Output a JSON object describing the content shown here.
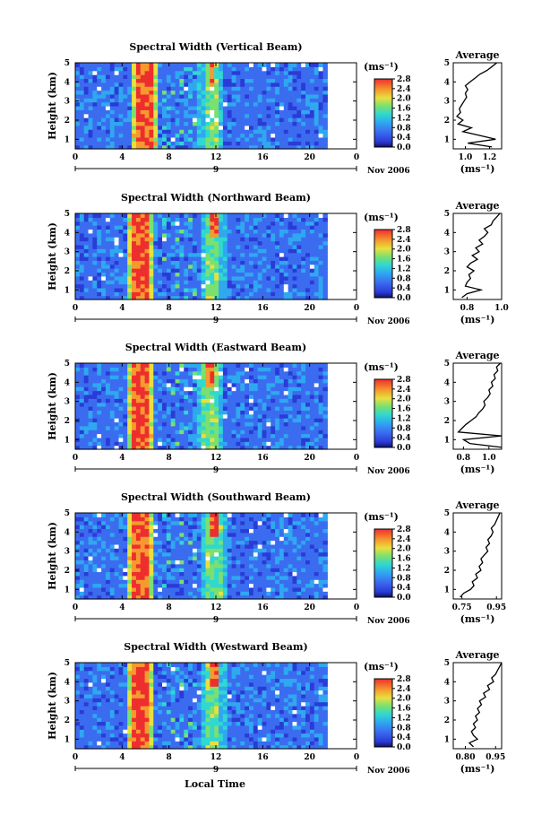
{
  "figure": {
    "xlabel": "Local Time",
    "date_label": "Nov 2006",
    "day_label": "9",
    "colorbar_unit": "(ms⁻¹)",
    "avg_title": "Average",
    "avg_xlabel": "(ms⁻¹)"
  },
  "chart_data": [
    {
      "type": "heatmap",
      "title": "Spectral Width (Vertical Beam)",
      "ylabel": "Height (km)",
      "x_ticks": [
        "0",
        "4",
        "8",
        "12",
        "16",
        "20",
        "0"
      ],
      "y_ticks": [
        "1",
        "2",
        "3",
        "4",
        "5"
      ],
      "xlim": [
        0,
        24
      ],
      "ylim": [
        0.5,
        5
      ],
      "colorbar_ticks": [
        "0.0",
        "0.4",
        "0.8",
        "1.2",
        "1.6",
        "2.0",
        "2.4",
        "2.8"
      ],
      "colorbar_range": [
        0.0,
        2.8
      ],
      "high_width_times": [
        5.8,
        11.6
      ],
      "average_profile": {
        "title": "Average",
        "xlabel": "(ms⁻¹)",
        "x_ticks": [
          "1.0",
          "1.2"
        ],
        "xlim": [
          0.9,
          1.3
        ],
        "ylim": [
          0.5,
          5
        ],
        "y_ticks": [
          "1",
          "2",
          "3",
          "4",
          "5"
        ],
        "height": [
          0.6,
          0.8,
          1.0,
          1.2,
          1.4,
          1.6,
          1.8,
          2.0,
          2.2,
          2.4,
          2.6,
          2.8,
          3.0,
          3.2,
          3.4,
          3.6,
          3.8,
          4.0,
          4.2,
          4.4,
          4.6,
          4.8,
          5.0
        ],
        "value": [
          1.22,
          1.02,
          1.25,
          1.12,
          0.98,
          1.05,
          0.94,
          0.98,
          0.93,
          0.96,
          0.95,
          0.97,
          0.99,
          1.01,
          1.0,
          1.02,
          1.0,
          1.04,
          1.08,
          1.12,
          1.18,
          1.22,
          1.26
        ]
      }
    },
    {
      "type": "heatmap",
      "title": "Spectral Width (Northward Beam)",
      "ylabel": "Height (km)",
      "x_ticks": [
        "0",
        "4",
        "8",
        "12",
        "16",
        "20",
        "0"
      ],
      "y_ticks": [
        "1",
        "2",
        "3",
        "4",
        "5"
      ],
      "xlim": [
        0,
        24
      ],
      "ylim": [
        0.5,
        5
      ],
      "colorbar_ticks": [
        "0.0",
        "0.4",
        "0.8",
        "1.2",
        "1.6",
        "2.0",
        "2.4",
        "2.8"
      ],
      "colorbar_range": [
        0.0,
        2.8
      ],
      "high_width_times": [
        5.5,
        11.8
      ],
      "average_profile": {
        "title": "Average",
        "xlabel": "(ms⁻¹)",
        "x_ticks": [
          "0.8",
          "1.0"
        ],
        "xlim": [
          0.72,
          1.0
        ],
        "ylim": [
          0.5,
          5
        ],
        "y_ticks": [
          "1",
          "2",
          "3",
          "4",
          "5"
        ],
        "height": [
          0.6,
          0.8,
          1.0,
          1.2,
          1.4,
          1.6,
          1.8,
          2.0,
          2.2,
          2.4,
          2.6,
          2.8,
          3.0,
          3.2,
          3.4,
          3.6,
          3.8,
          4.0,
          4.2,
          4.4,
          4.6,
          4.8,
          5.0
        ],
        "value": [
          0.77,
          0.8,
          0.88,
          0.79,
          0.8,
          0.82,
          0.81,
          0.84,
          0.8,
          0.82,
          0.86,
          0.83,
          0.87,
          0.85,
          0.89,
          0.87,
          0.9,
          0.92,
          0.9,
          0.94,
          0.95,
          0.97,
          0.99
        ]
      }
    },
    {
      "type": "heatmap",
      "title": "Spectral Width (Eastward Beam)",
      "ylabel": "Height (km)",
      "x_ticks": [
        "0",
        "4",
        "8",
        "12",
        "16",
        "20",
        "0"
      ],
      "y_ticks": [
        "1",
        "2",
        "3",
        "4",
        "5"
      ],
      "xlim": [
        0,
        24
      ],
      "ylim": [
        0.5,
        5
      ],
      "colorbar_ticks": [
        "0.0",
        "0.4",
        "0.8",
        "1.2",
        "1.6",
        "2.0",
        "2.4",
        "2.8"
      ],
      "colorbar_range": [
        0.0,
        2.8
      ],
      "high_width_times": [
        5.7,
        11.5
      ],
      "average_profile": {
        "title": "Average",
        "xlabel": "(ms⁻¹)",
        "x_ticks": [
          "0.8",
          "1.0"
        ],
        "xlim": [
          0.72,
          1.1
        ],
        "ylim": [
          0.5,
          5
        ],
        "y_ticks": [
          "1",
          "2",
          "3",
          "4",
          "5"
        ],
        "height": [
          0.6,
          0.8,
          1.0,
          1.2,
          1.4,
          1.6,
          1.8,
          2.0,
          2.2,
          2.4,
          2.6,
          2.8,
          3.0,
          3.2,
          3.4,
          3.6,
          3.8,
          4.0,
          4.2,
          4.4,
          4.6,
          4.8,
          5.0
        ],
        "value": [
          1.1,
          0.85,
          0.8,
          1.1,
          0.76,
          0.79,
          0.82,
          0.86,
          0.9,
          0.92,
          0.95,
          0.97,
          0.96,
          0.99,
          1.01,
          1.0,
          1.03,
          1.02,
          1.05,
          1.04,
          1.07,
          1.06,
          1.09
        ]
      }
    },
    {
      "type": "heatmap",
      "title": "Spectral Width (Southward Beam)",
      "ylabel": "Height (km)",
      "x_ticks": [
        "0",
        "4",
        "8",
        "12",
        "16",
        "20",
        "0"
      ],
      "y_ticks": [
        "1",
        "2",
        "3",
        "4",
        "5"
      ],
      "xlim": [
        0,
        24
      ],
      "ylim": [
        0.5,
        5
      ],
      "colorbar_ticks": [
        "0.0",
        "0.4",
        "0.8",
        "1.2",
        "1.6",
        "2.0",
        "2.4",
        "2.8"
      ],
      "colorbar_range": [
        0.0,
        2.8
      ],
      "high_width_times": [
        5.6,
        11.9
      ],
      "average_profile": {
        "title": "Average",
        "xlabel": "(ms⁻¹)",
        "x_ticks": [
          "0.75",
          "0.95"
        ],
        "xlim": [
          0.7,
          0.98
        ],
        "ylim": [
          0.5,
          5
        ],
        "y_ticks": [
          "1",
          "2",
          "3",
          "4",
          "5"
        ],
        "height": [
          0.6,
          0.8,
          1.0,
          1.2,
          1.4,
          1.6,
          1.8,
          2.0,
          2.2,
          2.4,
          2.6,
          2.8,
          3.0,
          3.2,
          3.4,
          3.6,
          3.8,
          4.0,
          4.2,
          4.4,
          4.6,
          4.8,
          5.0
        ],
        "value": [
          0.74,
          0.76,
          0.8,
          0.82,
          0.81,
          0.84,
          0.83,
          0.86,
          0.85,
          0.87,
          0.86,
          0.88,
          0.9,
          0.89,
          0.91,
          0.9,
          0.92,
          0.93,
          0.92,
          0.94,
          0.95,
          0.96,
          0.97
        ]
      }
    },
    {
      "type": "heatmap",
      "title": "Spectral Width (Westward Beam)",
      "ylabel": "Height (km)",
      "x_ticks": [
        "0",
        "4",
        "8",
        "12",
        "16",
        "20",
        "0"
      ],
      "y_ticks": [
        "1",
        "2",
        "3",
        "4",
        "5"
      ],
      "xlim": [
        0,
        24
      ],
      "ylim": [
        0.5,
        5
      ],
      "colorbar_ticks": [
        "0.0",
        "0.4",
        "0.8",
        "1.2",
        "1.6",
        "2.0",
        "2.4",
        "2.8"
      ],
      "colorbar_range": [
        0.0,
        2.8
      ],
      "high_width_times": [
        5.6,
        11.8
      ],
      "average_profile": {
        "title": "Average",
        "xlabel": "(ms⁻¹)",
        "x_ticks": [
          "0.80",
          "0.95"
        ],
        "xlim": [
          0.74,
          0.98
        ],
        "ylim": [
          0.5,
          5
        ],
        "y_ticks": [
          "1",
          "2",
          "3",
          "4",
          "5"
        ],
        "height": [
          0.6,
          0.8,
          1.0,
          1.2,
          1.4,
          1.6,
          1.8,
          2.0,
          2.2,
          2.4,
          2.6,
          2.8,
          3.0,
          3.2,
          3.4,
          3.6,
          3.8,
          4.0,
          4.2,
          4.4,
          4.6,
          4.8,
          5.0
        ],
        "value": [
          0.84,
          0.82,
          0.86,
          0.84,
          0.83,
          0.85,
          0.84,
          0.86,
          0.85,
          0.87,
          0.86,
          0.88,
          0.87,
          0.9,
          0.89,
          0.92,
          0.91,
          0.94,
          0.93,
          0.95,
          0.96,
          0.97,
          0.98
        ]
      }
    }
  ]
}
